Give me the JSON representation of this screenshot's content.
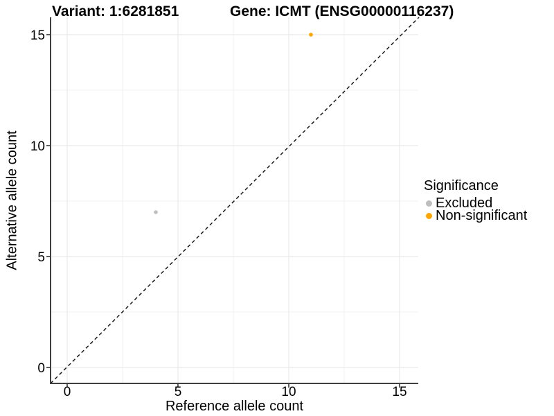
{
  "chart_data": {
    "type": "scatter",
    "title_left": "Variant: 1:6281851",
    "title_right": "Gene: ICMT (ENSG00000116237)",
    "xlabel": "Reference allele count",
    "ylabel": "Alternative allele count",
    "xlim": [
      0,
      15
    ],
    "ylim": [
      0,
      15
    ],
    "x_ticks": [
      0,
      5,
      10,
      15
    ],
    "y_ticks": [
      0,
      5,
      10,
      15
    ],
    "x_minor_ticks": [
      2.5,
      7.5,
      12.5
    ],
    "y_minor_ticks": [
      2.5,
      7.5,
      12.5
    ],
    "grid": "major and minor gridlines on white background",
    "identity_line": {
      "equation": "y = x",
      "style": "dashed",
      "color": "#1a1a1a"
    },
    "legend": {
      "title": "Significance",
      "position": "right"
    },
    "series": [
      {
        "name": "Excluded",
        "color": "#BEBEBE",
        "points": [
          {
            "x": 4,
            "y": 7
          }
        ]
      },
      {
        "name": "Non-significant",
        "color": "#FFA500",
        "points": [
          {
            "x": 11,
            "y": 15
          }
        ]
      }
    ]
  },
  "colors": {
    "background": "#ffffff",
    "grid_major": "#e6e6e6",
    "grid_minor": "#f2f2f2",
    "axis_line": "#3f3f3f",
    "tick_mark": "#333333",
    "text": "#000000"
  }
}
